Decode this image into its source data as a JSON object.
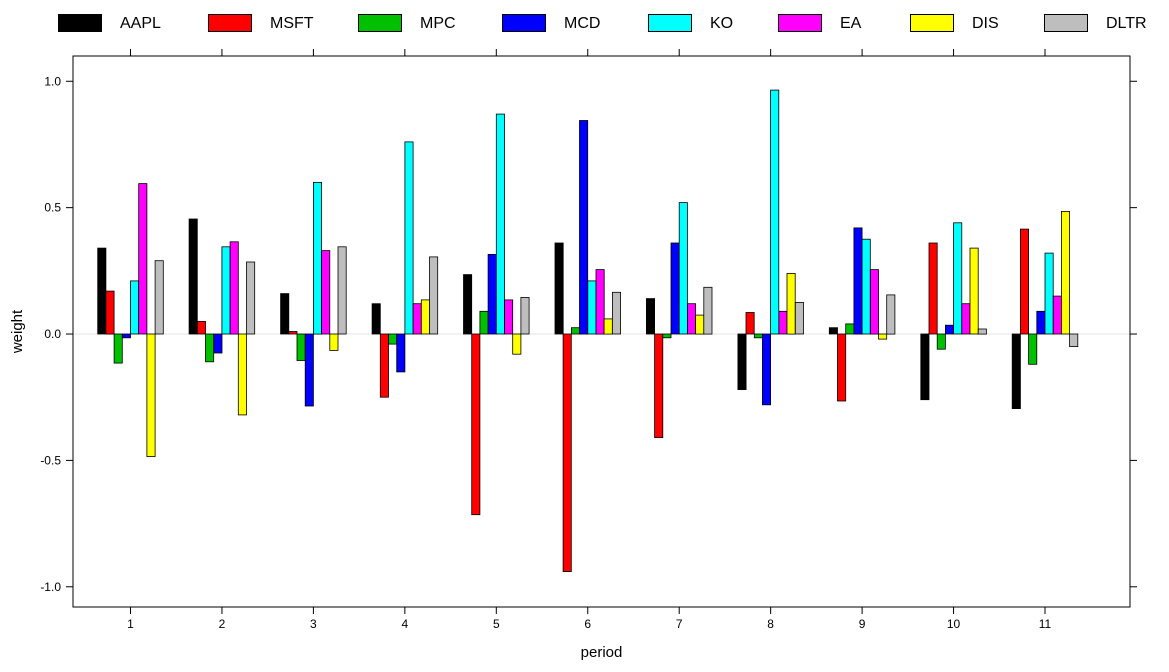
{
  "chart_data": {
    "type": "bar",
    "title": "",
    "xlabel": "period",
    "ylabel": "weight",
    "categories": [
      "1",
      "2",
      "3",
      "4",
      "5",
      "6",
      "7",
      "8",
      "9",
      "10",
      "11"
    ],
    "ylim": [
      -1.08,
      1.1
    ],
    "yticks": [
      -1.0,
      -0.5,
      0.0,
      0.5,
      1.0
    ],
    "ytick_labels": [
      "-1.0",
      "-0.5",
      "0.0",
      "0.5",
      "1.0"
    ],
    "grid": false,
    "legend_position": "top",
    "series": [
      {
        "name": "AAPL",
        "color": "#000000",
        "values": [
          0.34,
          0.455,
          0.16,
          0.12,
          0.235,
          0.36,
          0.14,
          -0.22,
          0.025,
          -0.26,
          -0.295
        ]
      },
      {
        "name": "MSFT",
        "color": "#ff0000",
        "values": [
          0.17,
          0.05,
          0.01,
          -0.25,
          -0.715,
          -0.94,
          -0.41,
          0.085,
          -0.265,
          0.36,
          0.415
        ]
      },
      {
        "name": "MPC",
        "color": "#00c000",
        "values": [
          -0.115,
          -0.11,
          -0.105,
          -0.04,
          0.09,
          0.025,
          -0.015,
          -0.015,
          0.04,
          -0.06,
          -0.12
        ]
      },
      {
        "name": "MCD",
        "color": "#0000ff",
        "values": [
          -0.015,
          -0.075,
          -0.285,
          -0.15,
          0.315,
          0.845,
          0.36,
          -0.28,
          0.42,
          0.035,
          0.09
        ]
      },
      {
        "name": "KO",
        "color": "#00ffff",
        "values": [
          0.21,
          0.345,
          0.6,
          0.76,
          0.87,
          0.21,
          0.52,
          0.965,
          0.375,
          0.44,
          0.32
        ]
      },
      {
        "name": "EA",
        "color": "#ff00ff",
        "values": [
          0.595,
          0.365,
          0.33,
          0.12,
          0.135,
          0.255,
          0.12,
          0.09,
          0.255,
          0.12,
          0.15
        ]
      },
      {
        "name": "DIS",
        "color": "#ffff00",
        "values": [
          -0.485,
          -0.32,
          -0.065,
          0.135,
          -0.08,
          0.06,
          0.075,
          0.24,
          -0.02,
          0.34,
          0.485
        ]
      },
      {
        "name": "DLTR",
        "color": "#bebebe",
        "values": [
          0.29,
          0.285,
          0.345,
          0.305,
          0.145,
          0.165,
          0.185,
          0.125,
          0.155,
          0.02,
          -0.05
        ]
      }
    ]
  }
}
